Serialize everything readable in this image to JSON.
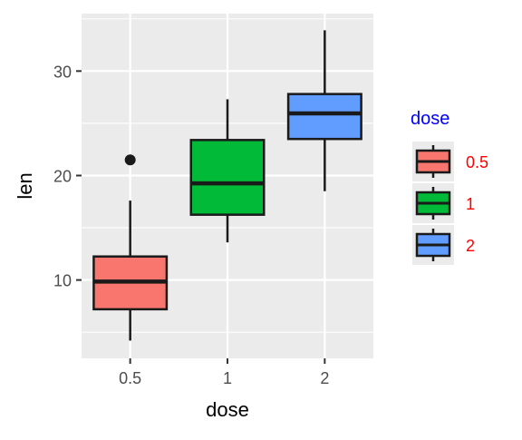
{
  "chart_data": {
    "type": "boxplot",
    "xlabel": "dose",
    "ylabel": "len",
    "categories": [
      "0.5",
      "1",
      "2"
    ],
    "ylim": [
      2.5,
      35.5
    ],
    "yticks": [
      10,
      20,
      30
    ],
    "grid": true,
    "legend_position": "right",
    "legend_title": "dose",
    "legend_title_color": "#0000FF",
    "legend_label_color": "#FF0000",
    "colors": [
      "#F8766D",
      "#00BA38",
      "#619CFF"
    ],
    "boxes": [
      {
        "category": "0.5",
        "whisker_low": 4.2,
        "q1": 7.2,
        "median": 9.85,
        "q3": 12.25,
        "whisker_high": 17.6,
        "outliers": [
          21.5
        ]
      },
      {
        "category": "1",
        "whisker_low": 13.6,
        "q1": 16.25,
        "median": 19.25,
        "q3": 23.4,
        "whisker_high": 27.3,
        "outliers": []
      },
      {
        "category": "2",
        "whisker_low": 18.5,
        "q1": 23.5,
        "median": 25.95,
        "q3": 27.8,
        "whisker_high": 33.9,
        "outliers": []
      }
    ]
  }
}
